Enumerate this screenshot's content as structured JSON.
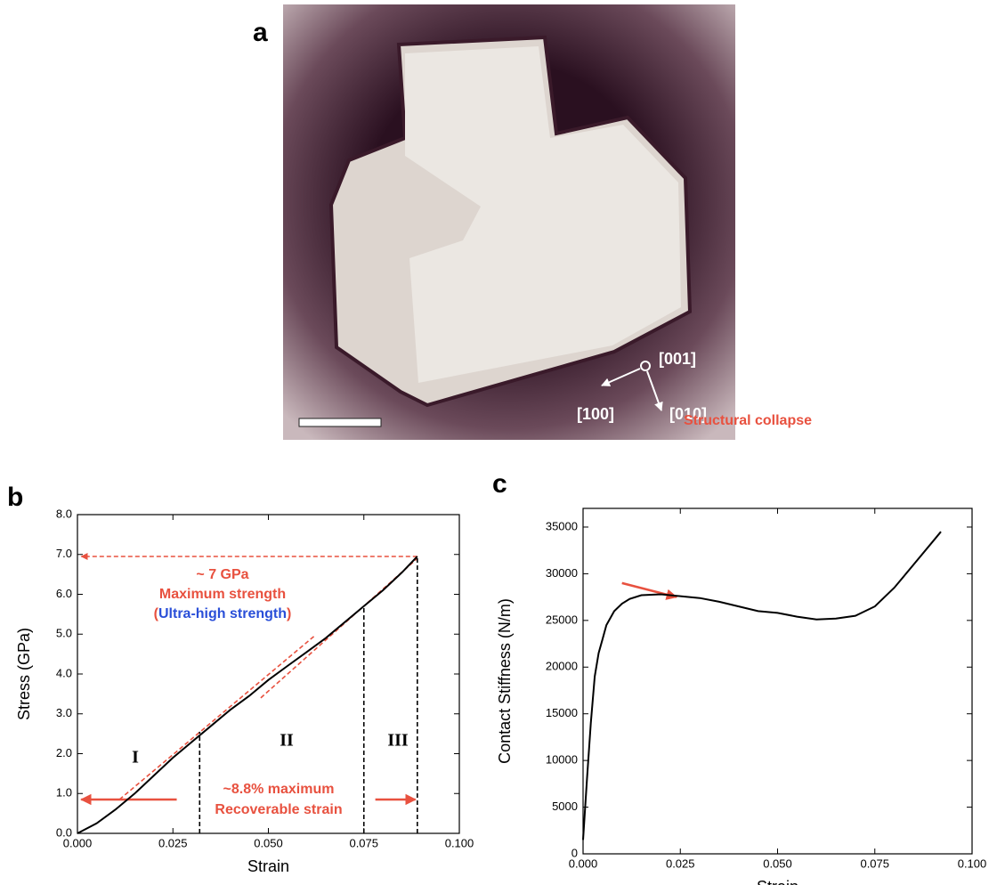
{
  "figure": {
    "panel_labels": [
      "a",
      "b",
      "c"
    ],
    "photo_labels": [
      "[001]",
      "[100]",
      "[010]"
    ]
  },
  "chart_data": [
    {
      "type": "line",
      "xlabel": "Strain",
      "ylabel": "Stress (GPa)",
      "x": [
        0,
        0.005,
        0.01,
        0.015,
        0.02,
        0.025,
        0.03,
        0.035,
        0.04,
        0.045,
        0.05,
        0.055,
        0.06,
        0.065,
        0.07,
        0.075,
        0.08,
        0.085,
        0.089
      ],
      "values": [
        0,
        0.25,
        0.6,
        1.0,
        1.45,
        1.9,
        2.3,
        2.7,
        3.1,
        3.45,
        3.85,
        4.2,
        4.55,
        4.9,
        5.3,
        5.7,
        6.1,
        6.55,
        6.95
      ],
      "color": "#000000",
      "xlim": [
        0,
        0.1
      ],
      "ylim": [
        0,
        8
      ],
      "xticks": [
        {
          "value": 0,
          "label": "0.000"
        },
        0.025,
        {
          "value": 0.05,
          "label": "0.050"
        },
        0.075,
        {
          "value": 0.1,
          "label": "0.100"
        }
      ],
      "yticks": [
        {
          "value": 0,
          "label": "0.0"
        },
        {
          "value": 1,
          "label": "1.0"
        },
        {
          "value": 2,
          "label": "2.0"
        },
        {
          "value": 3,
          "label": "3.0"
        },
        {
          "value": 4,
          "label": "4.0"
        },
        {
          "value": 5,
          "label": "5.0"
        },
        {
          "value": 6,
          "label": "6.0"
        },
        {
          "value": 7,
          "label": "7.0"
        },
        {
          "value": 8,
          "label": "8.0"
        }
      ],
      "reference_lines": [
        {
          "x": [
            0.011,
            0.062
          ],
          "values": [
            0.85,
            4.95
          ],
          "color": "#e8513f",
          "dashed": true,
          "arrow": false
        },
        {
          "x": [
            0.048,
            0.089
          ],
          "values": [
            3.4,
            6.9
          ],
          "color": "#e8513f",
          "dashed": true,
          "arrow": false
        },
        {
          "x": [
            0.032,
            0.032
          ],
          "values": [
            0,
            2.55
          ],
          "color": "#000000",
          "dashed": true,
          "arrow": false
        },
        {
          "x": [
            0.075,
            0.075
          ],
          "values": [
            0,
            5.7
          ],
          "color": "#000000",
          "dashed": true,
          "arrow": false
        },
        {
          "x": [
            0.089,
            0.089
          ],
          "values": [
            0,
            6.95
          ],
          "color": "#000000",
          "dashed": true,
          "arrow": false
        },
        {
          "x": [
            0.089,
            0.001
          ],
          "values": [
            6.95,
            6.95
          ],
          "color": "#e8513f",
          "dashed": true,
          "arrow": true
        },
        {
          "x": [
            0.026,
            0.001
          ],
          "values": [
            0.85,
            0.85
          ],
          "color": "#e8513f",
          "dashed": false,
          "arrow": true
        },
        {
          "x": [
            0.078,
            0.0885
          ],
          "values": [
            0.85,
            0.85
          ],
          "color": "#e8513f",
          "dashed": false,
          "arrow": true
        }
      ],
      "annotations": [
        {
          "text": "~ 7 GPa",
          "color": "#e8513f"
        },
        {
          "text": "Maximum strength",
          "color": "#e8513f"
        },
        {
          "parts": [
            {
              "text": "(",
              "color": "#e8513f"
            },
            {
              "text": "Ultra-high strength",
              "color": "#2a4fd8"
            },
            {
              "text": ")",
              "color": "#e8513f"
            }
          ]
        },
        {
          "text": "I",
          "color": "#000000"
        },
        {
          "text": "II",
          "color": "#000000"
        },
        {
          "text": "III",
          "color": "#000000"
        },
        {
          "text": "~8.8% maximum",
          "color": "#e8513f"
        },
        {
          "text": "Recoverable strain",
          "color": "#e8513f"
        }
      ]
    },
    {
      "type": "line",
      "xlabel": "Strain",
      "ylabel": "Contact Stiffness (N/m)",
      "x": [
        0,
        0.001,
        0.002,
        0.003,
        0.004,
        0.005,
        0.006,
        0.008,
        0.01,
        0.012,
        0.015,
        0.02,
        0.025,
        0.03,
        0.035,
        0.04,
        0.045,
        0.05,
        0.055,
        0.06,
        0.065,
        0.07,
        0.075,
        0.08,
        0.085,
        0.09,
        0.092
      ],
      "values": [
        1500,
        8000,
        14000,
        19000,
        21500,
        23000,
        24500,
        26000,
        26800,
        27300,
        27700,
        27800,
        27600,
        27400,
        27000,
        26500,
        26000,
        25800,
        25400,
        25100,
        25200,
        25500,
        26500,
        28500,
        31000,
        33500,
        34500
      ],
      "color": "#000000",
      "xlim": [
        0,
        0.1
      ],
      "ylim": [
        0,
        37000
      ],
      "xticks": [
        {
          "value": 0,
          "label": "0.000"
        },
        0.025,
        {
          "value": 0.05,
          "label": "0.050"
        },
        0.075,
        {
          "value": 0.1,
          "label": "0.100"
        }
      ],
      "yticks": [
        0,
        5000,
        10000,
        15000,
        20000,
        25000,
        30000,
        35000
      ],
      "reference_lines": [
        {
          "x": [
            0.01,
            0.024
          ],
          "values": [
            29000,
            27500
          ],
          "color": "#e8513f",
          "dashed": false,
          "arrow": true
        }
      ],
      "annotations": [
        {
          "text": "Structural collapse",
          "color": "#e8513f"
        }
      ]
    }
  ]
}
